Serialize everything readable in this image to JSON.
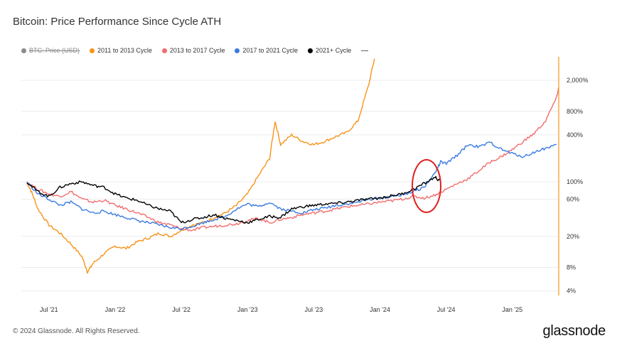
{
  "header": {
    "title": "Bitcoin: Price Performance Since Cycle ATH"
  },
  "legend": {
    "items": [
      {
        "label": "BTC: Price (USD)",
        "color": "#8c8c8c",
        "disabled": true
      },
      {
        "label": "2011 to 2013 Cycle",
        "color": "#f7931a"
      },
      {
        "label": "2013 to 2017 Cycle",
        "color": "#f26d6d"
      },
      {
        "label": "2017 to 2021 Cycle",
        "color": "#3a7be0"
      },
      {
        "label": "2021+ Cycle",
        "color": "#000000"
      }
    ]
  },
  "footer": {
    "copyright": "© 2024 Glassnode. All Rights Reserved.",
    "logo": "glassnode"
  },
  "chart_data": {
    "type": "line",
    "title": "Bitcoin: Price Performance Since Cycle ATH",
    "x_ticks": [
      "Jul '21",
      "Jan '22",
      "Jul '22",
      "Jan '23",
      "Jul '23",
      "Jan '24",
      "Jul '24",
      "Jan '25"
    ],
    "y_scale": "log",
    "y_ticks": [
      "2,000%",
      "800%",
      "400%",
      "100%",
      "60%",
      "20%",
      "8%",
      "4%"
    ],
    "y_tick_values": [
      2000,
      800,
      400,
      100,
      60,
      20,
      8,
      4
    ],
    "ylim": [
      3.5,
      4000
    ],
    "x_range_months": [
      -2.5,
      46.2
    ],
    "annotation": {
      "type": "ellipse",
      "color": "#e02020",
      "note": "highlighted current cycle region"
    },
    "series": [
      {
        "name": "2011 to 2013 Cycle",
        "color": "#f7931a",
        "points": [
          [
            -2,
            100
          ],
          [
            -1.5,
            70
          ],
          [
            -1,
            45
          ],
          [
            0,
            28
          ],
          [
            1,
            22
          ],
          [
            2,
            16
          ],
          [
            3,
            11
          ],
          [
            3.5,
            7
          ],
          [
            4,
            9
          ],
          [
            5,
            12
          ],
          [
            6,
            15
          ],
          [
            7,
            14
          ],
          [
            8,
            17
          ],
          [
            9,
            19
          ],
          [
            10,
            22
          ],
          [
            11,
            20
          ],
          [
            12,
            24
          ],
          [
            13,
            28
          ],
          [
            14,
            30
          ],
          [
            15,
            35
          ],
          [
            16,
            40
          ],
          [
            17,
            50
          ],
          [
            18,
            70
          ],
          [
            19,
            120
          ],
          [
            20,
            200
          ],
          [
            20.5,
            600
          ],
          [
            21,
            300
          ],
          [
            22,
            400
          ],
          [
            23,
            330
          ],
          [
            24,
            300
          ],
          [
            25,
            330
          ],
          [
            26,
            380
          ],
          [
            27,
            430
          ],
          [
            28,
            600
          ],
          [
            29,
            1800
          ],
          [
            29.5,
            3800
          ]
        ]
      },
      {
        "name": "2013 to 2017 Cycle",
        "color": "#f26d6d",
        "points": [
          [
            -2,
            100
          ],
          [
            -1,
            80
          ],
          [
            0,
            70
          ],
          [
            1,
            65
          ],
          [
            2,
            75
          ],
          [
            3,
            60
          ],
          [
            4,
            55
          ],
          [
            5,
            58
          ],
          [
            6,
            50
          ],
          [
            7,
            45
          ],
          [
            8,
            40
          ],
          [
            9,
            35
          ],
          [
            10,
            30
          ],
          [
            11,
            28
          ],
          [
            12,
            25
          ],
          [
            13,
            24
          ],
          [
            14,
            26
          ],
          [
            15,
            27
          ],
          [
            16,
            28
          ],
          [
            17,
            29
          ],
          [
            18,
            32
          ],
          [
            19,
            34
          ],
          [
            20,
            30
          ],
          [
            21,
            33
          ],
          [
            22,
            35
          ],
          [
            23,
            38
          ],
          [
            24,
            40
          ],
          [
            25,
            42
          ],
          [
            26,
            45
          ],
          [
            27,
            48
          ],
          [
            28,
            50
          ],
          [
            29,
            52
          ],
          [
            30,
            55
          ],
          [
            31,
            57
          ],
          [
            32,
            60
          ],
          [
            33,
            65
          ],
          [
            34,
            62
          ],
          [
            35,
            68
          ],
          [
            36,
            80
          ],
          [
            37,
            95
          ],
          [
            38,
            110
          ],
          [
            39,
            140
          ],
          [
            40,
            180
          ],
          [
            41,
            210
          ],
          [
            42,
            260
          ],
          [
            43,
            330
          ],
          [
            44,
            420
          ],
          [
            45,
            600
          ],
          [
            46,
            1200
          ],
          [
            46.2,
            1600
          ]
        ]
      },
      {
        "name": "2017 to 2021 Cycle",
        "color": "#3a7be0",
        "points": [
          [
            -2,
            100
          ],
          [
            -1,
            70
          ],
          [
            0,
            60
          ],
          [
            1,
            50
          ],
          [
            2,
            55
          ],
          [
            3,
            45
          ],
          [
            4,
            40
          ],
          [
            5,
            42
          ],
          [
            6,
            38
          ],
          [
            7,
            35
          ],
          [
            8,
            32
          ],
          [
            9,
            30
          ],
          [
            10,
            28
          ],
          [
            11,
            26
          ],
          [
            12,
            25
          ],
          [
            13,
            27
          ],
          [
            14,
            30
          ],
          [
            15,
            33
          ],
          [
            16,
            36
          ],
          [
            17,
            45
          ],
          [
            18,
            52
          ],
          [
            19,
            48
          ],
          [
            20,
            55
          ],
          [
            21,
            45
          ],
          [
            22,
            42
          ],
          [
            23,
            40
          ],
          [
            24,
            44
          ],
          [
            25,
            46
          ],
          [
            26,
            50
          ],
          [
            27,
            52
          ],
          [
            28,
            55
          ],
          [
            29,
            60
          ],
          [
            30,
            62
          ],
          [
            31,
            65
          ],
          [
            32,
            68
          ],
          [
            33,
            75
          ],
          [
            34,
            85
          ],
          [
            35,
            130
          ],
          [
            35.5,
            180
          ],
          [
            36,
            170
          ],
          [
            37,
            220
          ],
          [
            38,
            300
          ],
          [
            39,
            280
          ],
          [
            40,
            320
          ],
          [
            41,
            260
          ],
          [
            42,
            230
          ],
          [
            43,
            210
          ],
          [
            44,
            240
          ],
          [
            45,
            270
          ],
          [
            46,
            300
          ]
        ]
      },
      {
        "name": "2021+ Cycle",
        "color": "#000000",
        "points": [
          [
            -2,
            100
          ],
          [
            -1,
            75
          ],
          [
            0,
            65
          ],
          [
            1,
            85
          ],
          [
            2,
            95
          ],
          [
            3,
            100
          ],
          [
            4,
            90
          ],
          [
            5,
            85
          ],
          [
            6,
            70
          ],
          [
            7,
            62
          ],
          [
            8,
            58
          ],
          [
            9,
            50
          ],
          [
            10,
            45
          ],
          [
            11,
            42
          ],
          [
            12,
            30
          ],
          [
            13,
            33
          ],
          [
            14,
            35
          ],
          [
            15,
            38
          ],
          [
            16,
            34
          ],
          [
            17,
            32
          ],
          [
            18,
            30
          ],
          [
            19,
            33
          ],
          [
            20,
            36
          ],
          [
            21,
            35
          ],
          [
            22,
            45
          ],
          [
            23,
            48
          ],
          [
            24,
            50
          ],
          [
            25,
            52
          ],
          [
            26,
            53
          ],
          [
            27,
            55
          ],
          [
            28,
            58
          ],
          [
            29,
            60
          ],
          [
            30,
            62
          ],
          [
            31,
            66
          ],
          [
            32,
            70
          ],
          [
            33,
            80
          ],
          [
            34,
            95
          ],
          [
            35,
            115
          ],
          [
            35.5,
            100
          ]
        ]
      }
    ]
  }
}
